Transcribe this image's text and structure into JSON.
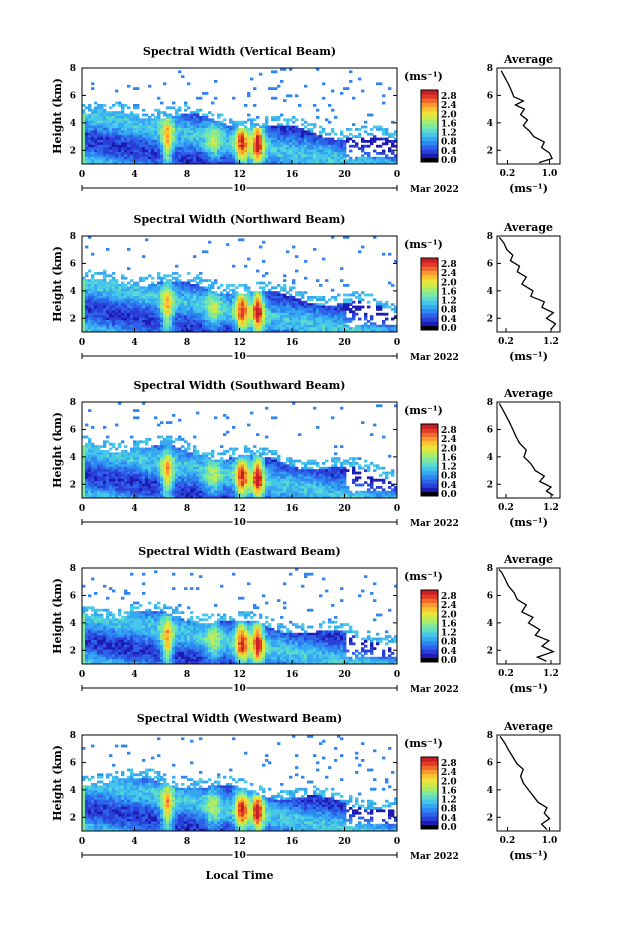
{
  "shared": {
    "x_tick_labels": [
      "0",
      "4",
      "8",
      "12",
      "16",
      "20",
      "0"
    ],
    "date_day": "10",
    "date_month_year": "Mar 2022",
    "x_axis_label": "Local Time",
    "y_axis_label": "Height (km)",
    "y_tick_labels": [
      "2",
      "4",
      "6",
      "8"
    ],
    "colorbar_unit": "(ms⁻¹)",
    "profile_title": "Average",
    "profile_unit": "(ms⁻¹)",
    "colors": {
      "colorbar": [
        "#000000",
        "#1c1cb4",
        "#2a3fd8",
        "#2c63e8",
        "#2f86f0",
        "#36a8f2",
        "#46c6e8",
        "#5fdcc9",
        "#7fe89e",
        "#a6ec6e",
        "#cdea4a",
        "#ece33a",
        "#f8c433",
        "#f89a30",
        "#f06a2c",
        "#e03a28",
        "#c81e24"
      ]
    }
  },
  "chart_data": [
    {
      "type": "heatmap",
      "title": "Spectral Width (Vertical Beam)",
      "x_range_hours": [
        0,
        24
      ],
      "y_range_km": [
        1,
        8
      ],
      "colorbar_tick_labels": [
        "0.0",
        "0.4",
        "0.8",
        "1.2",
        "1.6",
        "2.0",
        "2.4",
        "2.8"
      ],
      "colorbar_range": [
        0,
        2.8
      ],
      "profile": {
        "x_tick_labels": [
          "0.2",
          "1.0"
        ],
        "x_range": [
          0,
          1.2
        ],
        "y_tick_labels": [
          "2",
          "4",
          "6",
          "8"
        ],
        "y_range_km": [
          1,
          8
        ],
        "points": [
          [
            1.1,
            0.8
          ],
          [
            1.4,
            1.05
          ],
          [
            1.8,
            1.0
          ],
          [
            2.2,
            0.85
          ],
          [
            2.6,
            0.9
          ],
          [
            3.0,
            0.7
          ],
          [
            3.4,
            0.62
          ],
          [
            3.8,
            0.5
          ],
          [
            4.2,
            0.58
          ],
          [
            4.6,
            0.45
          ],
          [
            5.0,
            0.52
          ],
          [
            5.3,
            0.35
          ],
          [
            5.6,
            0.5
          ],
          [
            5.9,
            0.32
          ],
          [
            6.3,
            0.28
          ],
          [
            6.8,
            0.22
          ],
          [
            7.3,
            0.15
          ],
          [
            7.8,
            0.08
          ]
        ]
      }
    },
    {
      "type": "heatmap",
      "title": "Spectral Width (Northward Beam)",
      "x_range_hours": [
        0,
        24
      ],
      "y_range_km": [
        1,
        8
      ],
      "colorbar_tick_labels": [
        "0.0",
        "0.4",
        "0.8",
        "1.2",
        "1.6",
        "2.0",
        "2.4",
        "2.8"
      ],
      "colorbar_range": [
        0,
        2.8
      ],
      "profile": {
        "x_tick_labels": [
          "0.2",
          "1.2"
        ],
        "x_range": [
          0,
          1.4
        ],
        "y_tick_labels": [
          "2",
          "4",
          "6",
          "8"
        ],
        "y_range_km": [
          1,
          8
        ],
        "points": [
          [
            1.2,
            1.2
          ],
          [
            1.6,
            1.3
          ],
          [
            2.0,
            1.1
          ],
          [
            2.4,
            1.25
          ],
          [
            2.8,
            1.0
          ],
          [
            3.2,
            1.05
          ],
          [
            3.6,
            0.75
          ],
          [
            4.0,
            0.8
          ],
          [
            4.5,
            0.55
          ],
          [
            5.0,
            0.65
          ],
          [
            5.4,
            0.45
          ],
          [
            5.8,
            0.5
          ],
          [
            6.2,
            0.3
          ],
          [
            6.6,
            0.35
          ],
          [
            7.0,
            0.22
          ],
          [
            7.5,
            0.15
          ],
          [
            7.9,
            0.05
          ]
        ]
      }
    },
    {
      "type": "heatmap",
      "title": "Spectral Width (Southward Beam)",
      "x_range_hours": [
        0,
        24
      ],
      "y_range_km": [
        1,
        8
      ],
      "colorbar_tick_labels": [
        "0.0",
        "0.4",
        "0.8",
        "1.2",
        "1.6",
        "2.0",
        "2.4",
        "2.8"
      ],
      "colorbar_range": [
        0,
        2.8
      ],
      "profile": {
        "x_tick_labels": [
          "0.2",
          "1.2"
        ],
        "x_range": [
          0,
          1.4
        ],
        "y_tick_labels": [
          "2",
          "4",
          "6",
          "8"
        ],
        "y_range_km": [
          1,
          8
        ],
        "points": [
          [
            1.2,
            1.25
          ],
          [
            1.5,
            1.1
          ],
          [
            1.8,
            1.2
          ],
          [
            2.2,
            0.95
          ],
          [
            2.6,
            1.05
          ],
          [
            3.0,
            0.85
          ],
          [
            3.5,
            0.75
          ],
          [
            4.0,
            0.6
          ],
          [
            4.5,
            0.65
          ],
          [
            5.0,
            0.5
          ],
          [
            5.5,
            0.42
          ],
          [
            6.0,
            0.35
          ],
          [
            6.5,
            0.28
          ],
          [
            7.0,
            0.2
          ],
          [
            7.5,
            0.12
          ],
          [
            7.9,
            0.05
          ]
        ]
      }
    },
    {
      "type": "heatmap",
      "title": "Spectral Width (Eastward Beam)",
      "x_range_hours": [
        0,
        24
      ],
      "y_range_km": [
        1,
        8
      ],
      "colorbar_tick_labels": [
        "0.0",
        "0.4",
        "0.8",
        "1.2",
        "1.6",
        "2.0",
        "2.4",
        "2.8"
      ],
      "colorbar_range": [
        0,
        2.8
      ],
      "profile": {
        "x_tick_labels": [
          "0.2",
          "1.2"
        ],
        "x_range": [
          0,
          1.4
        ],
        "y_tick_labels": [
          "2",
          "4",
          "6",
          "8"
        ],
        "y_range_km": [
          1,
          8
        ],
        "points": [
          [
            1.2,
            1.1
          ],
          [
            1.5,
            0.9
          ],
          [
            1.9,
            1.25
          ],
          [
            2.3,
            1.0
          ],
          [
            2.7,
            1.15
          ],
          [
            3.1,
            0.85
          ],
          [
            3.5,
            0.95
          ],
          [
            4.0,
            0.7
          ],
          [
            4.4,
            0.8
          ],
          [
            4.8,
            0.55
          ],
          [
            5.3,
            0.65
          ],
          [
            5.7,
            0.45
          ],
          [
            6.2,
            0.38
          ],
          [
            6.7,
            0.25
          ],
          [
            7.2,
            0.18
          ],
          [
            7.7,
            0.1
          ],
          [
            7.9,
            0.04
          ]
        ]
      }
    },
    {
      "type": "heatmap",
      "title": "Spectral Width (Westward Beam)",
      "x_range_hours": [
        0,
        24
      ],
      "y_range_km": [
        1,
        8
      ],
      "colorbar_tick_labels": [
        "0.0",
        "0.4",
        "0.8",
        "1.2",
        "1.6",
        "2.0",
        "2.4",
        "2.8"
      ],
      "colorbar_range": [
        0,
        2.8
      ],
      "profile": {
        "x_tick_labels": [
          "0.2",
          "1.0"
        ],
        "x_range": [
          0,
          1.2
        ],
        "y_tick_labels": [
          "2",
          "4",
          "6",
          "8"
        ],
        "y_range_km": [
          1,
          8
        ],
        "points": [
          [
            1.1,
            0.95
          ],
          [
            1.5,
            0.85
          ],
          [
            1.9,
            1.0
          ],
          [
            2.3,
            0.9
          ],
          [
            2.7,
            0.95
          ],
          [
            3.1,
            0.78
          ],
          [
            3.5,
            0.7
          ],
          [
            4.0,
            0.6
          ],
          [
            4.5,
            0.5
          ],
          [
            5.0,
            0.45
          ],
          [
            5.5,
            0.5
          ],
          [
            5.9,
            0.38
          ],
          [
            6.4,
            0.3
          ],
          [
            6.9,
            0.22
          ],
          [
            7.4,
            0.15
          ],
          [
            7.9,
            0.06
          ]
        ]
      }
    }
  ]
}
